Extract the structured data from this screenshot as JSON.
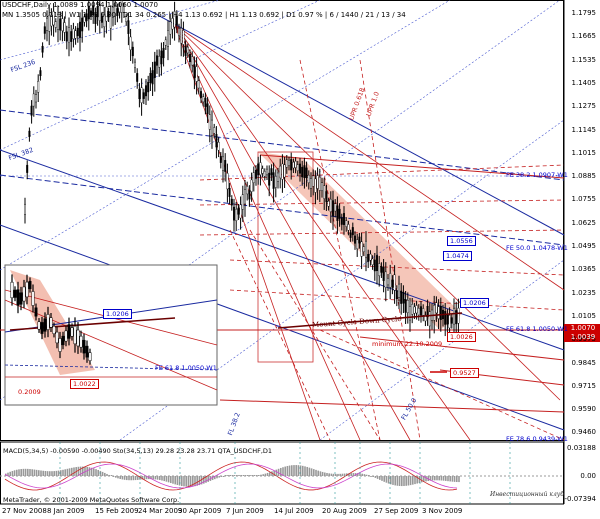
{
  "header": {
    "line1": "USDCHF,Daily  1.0089 1.0094 1.0060 1.0070",
    "line2": "MN 1.3505  0.113 | W1 1.25  0.80 | D1 34  0.265 | H4 1.13  0.692 | H1 1.13  0.692 | D1 0.97 % | 6 / 1440 / 21 / 13 / 34"
  },
  "price_axis": [
    "1.1795",
    "1.1665",
    "1.1535",
    "1.1405",
    "1.1275",
    "1.1145",
    "1.1015",
    "1.0885",
    "1.0755",
    "1.0625",
    "1.0495",
    "1.0365",
    "1.0235",
    "1.0105",
    "0.9975",
    "0.9845",
    "0.9715",
    "0.9590",
    "0.9460"
  ],
  "macd_axis": [
    "0.03188",
    "0.00",
    "-0.07394"
  ],
  "current_price": "1.0070",
  "line_price": "1.0039",
  "date_axis": [
    "27 Nov 2008",
    "8 Jan 2009",
    "15 Feb 2009",
    "24 Mar 2009",
    "30 Apr 2009",
    "7 Jun 2009",
    "14 Jul 2009",
    "20 Aug 2009",
    "27 Sep 2009",
    "3 Nov 2009"
  ],
  "annotations": {
    "fe382": "FE 38.2  1.0907-W1",
    "fe50": "FE 50.0  1.0478-W1",
    "fe618": "FE 61.8  1.0050-W1",
    "fe786": "FE 78.6  0.9439-W1",
    "box1": "1.0556",
    "box2": "1.0474",
    "box3": "1.0206",
    "box4": "1.0026",
    "redbox": "0.9527",
    "cycle": "Mount Cycle Down Cycle",
    "minimum": "minimum 22.10.2009",
    "fsl1": "FSL 236",
    "fsl2": "FSL 382",
    "upr": "UPR 0.618",
    "upr2": "UPR 1.0",
    "mid1": "1.0",
    "inset_box1": "1.0206",
    "inset_box2": "1.0022",
    "inset_fe": "FE 61.8  1.0050-W1",
    "inset_year": "0.2009",
    "fl50": "FL 50.0",
    "fl382": "FL 38.2"
  },
  "macd_header": "MACD(5,34,5)  -0.00590  -0.00490  Sto(34,5,13) 29.28 23.28 23.71   QTA_USDCHF,D1",
  "footer": "MetaTrader, © 2001-2009 MetaQuotes Software Corp.",
  "signature": "Инвестиционный клуб"
}
